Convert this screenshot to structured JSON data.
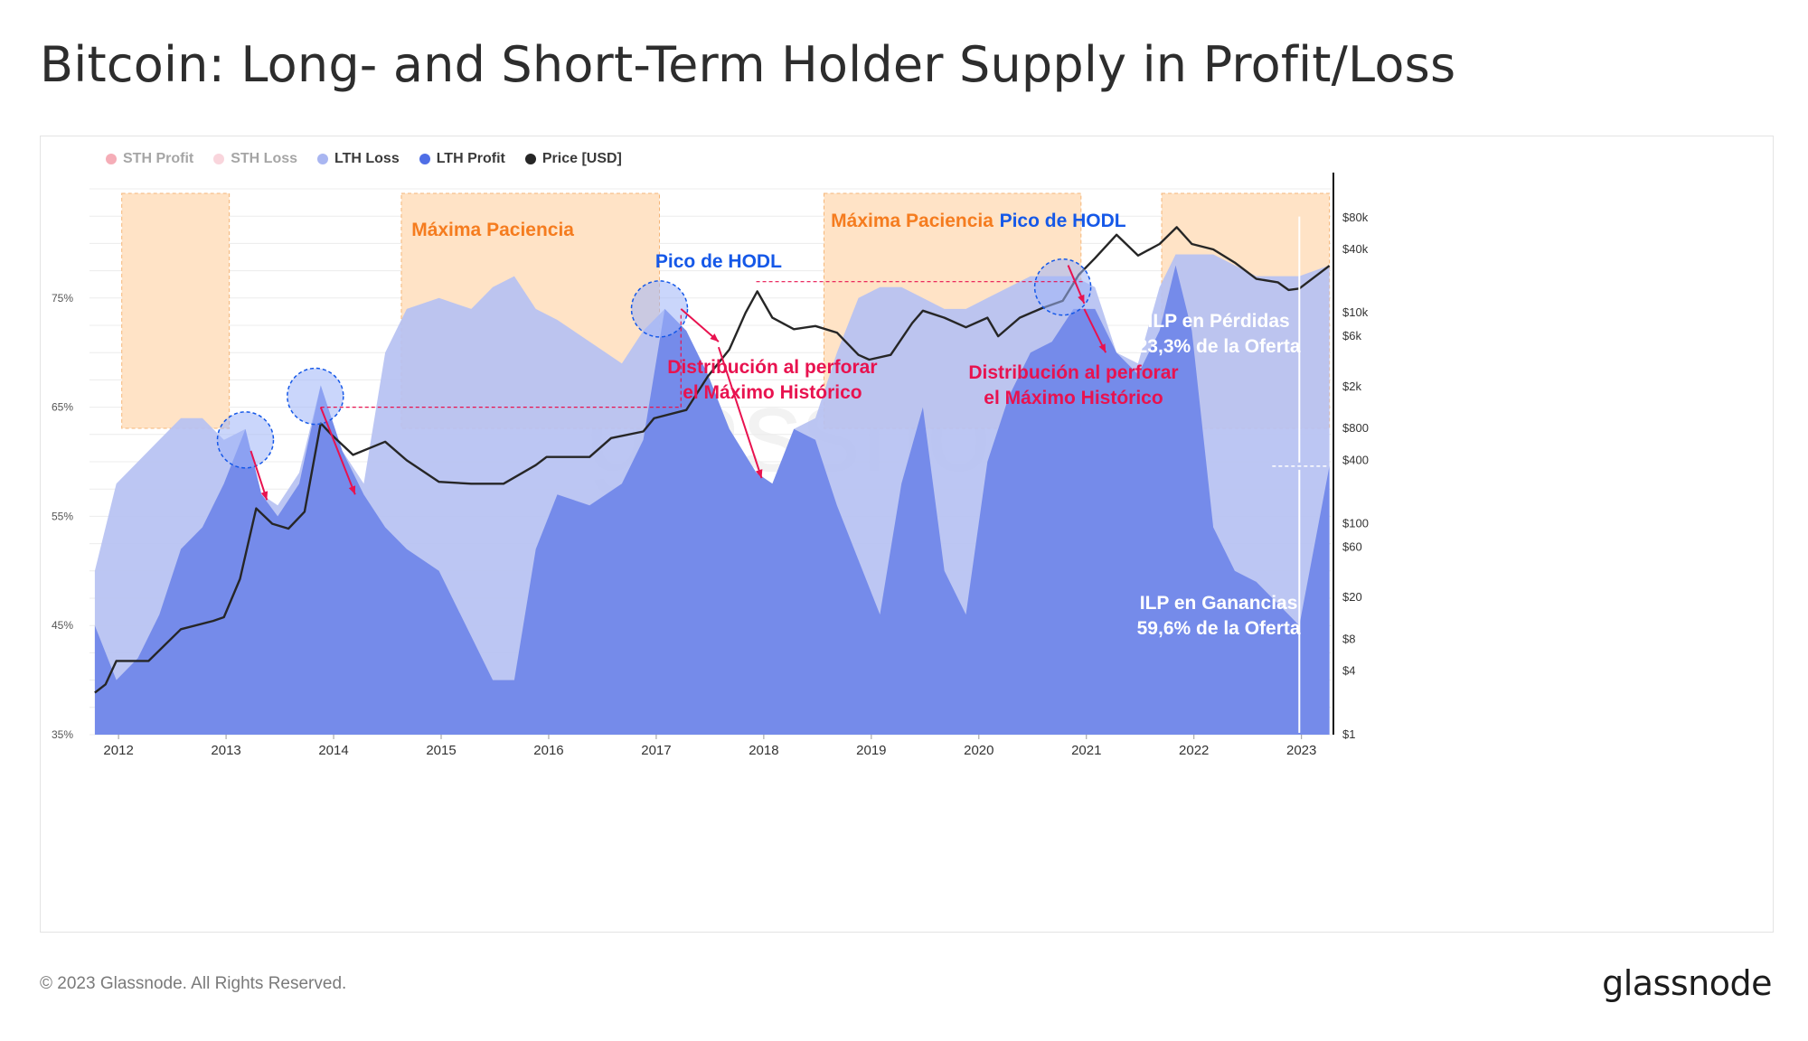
{
  "title": "Bitcoin: Long- and Short-Term Holder Supply in Profit/Loss",
  "footer": {
    "copyright": "© 2023 Glassnode. All Rights Reserved.",
    "logo": "glassnode"
  },
  "watermark": "glassnode",
  "colors": {
    "sth_profit": "#e84a5f",
    "sth_loss": "#f2a3b3",
    "lth_loss": "#b6c1f2",
    "lth_profit": "#7188e9",
    "price": "#262626",
    "band": "#ffe3c6",
    "annotation_orange": "#f57c1f",
    "annotation_blue": "#1558e8",
    "annotation_red": "#e8124f"
  },
  "legend": [
    {
      "label": "STH Profit",
      "color": "#e84a5f",
      "active": false
    },
    {
      "label": "STH Loss",
      "color": "#f2a3b3",
      "active": false
    },
    {
      "label": "LTH Loss",
      "color": "#a9b6f1",
      "active": true
    },
    {
      "label": "LTH Profit",
      "color": "#4f6ee6",
      "active": true
    },
    {
      "label": "Price [USD]",
      "color": "#262626",
      "active": true
    }
  ],
  "chart_data": {
    "type": "area",
    "title": "Bitcoin: Long- and Short-Term Holder Supply in Profit/Loss",
    "x_ticks": [
      "2012",
      "2013",
      "2014",
      "2015",
      "2016",
      "2017",
      "2018",
      "2019",
      "2020",
      "2021",
      "2022",
      "2023"
    ],
    "y_left": {
      "ticks": [
        "35%",
        "45%",
        "55%",
        "65%",
        "75%"
      ],
      "range": [
        35,
        85
      ],
      "unit": "% of supply"
    },
    "y_right": {
      "scale": "log",
      "ticks": [
        "$1",
        "$4",
        "$8",
        "$20",
        "$60",
        "$100",
        "$400",
        "$800",
        "$2k",
        "$6k",
        "$10k",
        "$40k",
        "$80k"
      ],
      "range": [
        1,
        150000
      ]
    },
    "series": [
      {
        "name": "LTH Loss",
        "x": [
          2011.8,
          2012.0,
          2012.2,
          2012.4,
          2012.6,
          2012.8,
          2013.0,
          2013.2,
          2013.35,
          2013.5,
          2013.7,
          2013.9,
          2014.1,
          2014.3,
          2014.5,
          2014.7,
          2015.0,
          2015.3,
          2015.5,
          2015.7,
          2015.9,
          2016.1,
          2016.4,
          2016.7,
          2016.9,
          2017.1,
          2017.3,
          2017.5,
          2017.7,
          2017.95,
          2018.1,
          2018.3,
          2018.5,
          2018.7,
          2018.9,
          2019.1,
          2019.3,
          2019.5,
          2019.7,
          2019.9,
          2020.1,
          2020.3,
          2020.5,
          2020.7,
          2020.9,
          2021.1,
          2021.3,
          2021.5,
          2021.7,
          2021.85,
          2022.0,
          2022.2,
          2022.4,
          2022.6,
          2022.8,
          2023.0,
          2023.28
        ],
        "values": [
          50,
          58,
          60,
          62,
          64,
          64,
          62,
          63,
          57,
          56,
          59,
          67,
          61,
          58,
          70,
          74,
          75,
          74,
          76,
          77,
          74,
          73,
          71,
          69,
          72,
          74,
          72,
          68,
          63,
          59,
          58,
          63,
          64,
          70,
          75,
          76,
          76,
          75,
          74,
          74,
          75,
          76,
          77,
          77,
          77,
          76,
          70,
          69,
          76,
          79,
          79,
          79,
          78,
          77,
          77,
          77,
          78
        ]
      },
      {
        "name": "LTH Profit",
        "x": [
          2011.8,
          2012.0,
          2012.2,
          2012.4,
          2012.6,
          2012.8,
          2013.0,
          2013.2,
          2013.35,
          2013.5,
          2013.7,
          2013.9,
          2014.1,
          2014.3,
          2014.5,
          2014.7,
          2015.0,
          2015.3,
          2015.5,
          2015.7,
          2015.9,
          2016.1,
          2016.4,
          2016.7,
          2016.9,
          2017.1,
          2017.3,
          2017.5,
          2017.7,
          2017.95,
          2018.1,
          2018.3,
          2018.5,
          2018.7,
          2018.9,
          2019.1,
          2019.3,
          2019.5,
          2019.7,
          2019.9,
          2020.1,
          2020.3,
          2020.5,
          2020.7,
          2020.9,
          2021.1,
          2021.3,
          2021.5,
          2021.7,
          2021.85,
          2022.0,
          2022.2,
          2022.4,
          2022.6,
          2022.8,
          2023.0,
          2023.28
        ],
        "values": [
          45,
          40,
          42,
          46,
          52,
          54,
          58,
          63,
          57,
          55,
          58,
          67,
          61,
          57,
          54,
          52,
          50,
          44,
          40,
          40,
          52,
          57,
          56,
          58,
          62,
          74,
          72,
          68,
          63,
          59,
          58,
          63,
          62,
          56,
          51,
          46,
          58,
          65,
          50,
          46,
          60,
          66,
          70,
          71,
          74,
          74,
          70,
          68,
          72,
          78,
          72,
          54,
          50,
          49,
          47,
          45,
          59.6
        ]
      },
      {
        "name": "Price [USD]",
        "x": [
          2011.8,
          2011.9,
          2012.0,
          2012.3,
          2012.6,
          2012.9,
          2013.0,
          2013.15,
          2013.3,
          2013.45,
          2013.6,
          2013.75,
          2013.9,
          2014.0,
          2014.2,
          2014.5,
          2014.7,
          2015.0,
          2015.3,
          2015.6,
          2015.9,
          2016.0,
          2016.4,
          2016.6,
          2016.9,
          2017.0,
          2017.3,
          2017.5,
          2017.7,
          2017.85,
          2017.96,
          2018.1,
          2018.3,
          2018.5,
          2018.7,
          2018.9,
          2019.0,
          2019.2,
          2019.4,
          2019.5,
          2019.7,
          2019.9,
          2020.1,
          2020.2,
          2020.4,
          2020.6,
          2020.8,
          2020.95,
          2021.1,
          2021.3,
          2021.5,
          2021.7,
          2021.86,
          2022.0,
          2022.2,
          2022.4,
          2022.6,
          2022.8,
          2022.9,
          2023.0,
          2023.28
        ],
        "values": [
          2.5,
          3,
          5,
          5,
          10,
          12,
          13,
          30,
          140,
          100,
          90,
          130,
          900,
          700,
          450,
          600,
          400,
          250,
          240,
          240,
          360,
          430,
          430,
          650,
          750,
          1000,
          1200,
          2500,
          4500,
          10000,
          16000,
          9000,
          7000,
          7500,
          6500,
          4000,
          3600,
          4000,
          8000,
          10500,
          9000,
          7300,
          9000,
          6000,
          9000,
          11000,
          13000,
          23000,
          33000,
          55000,
          35000,
          45000,
          65000,
          45000,
          40000,
          30000,
          21000,
          19500,
          16500,
          17000,
          28000
        ]
      }
    ],
    "annotations": [
      {
        "text": "Máxima Paciencia",
        "color": "orange",
        "x": 2015.5
      },
      {
        "text": "Máxima Paciencia",
        "color": "orange",
        "x": 2019.4
      },
      {
        "text": "Pico de HODL",
        "color": "blue",
        "x": 2017.6
      },
      {
        "text": "Pico de HODL",
        "color": "blue",
        "x": 2020.8
      },
      {
        "text": "Distribución al perforar",
        "text2": "el Máximo Histórico",
        "color": "red",
        "x": 2018.1
      },
      {
        "text": "Distribución al perforar",
        "text2": "el Máximo Histórico",
        "color": "red",
        "x": 2020.9
      },
      {
        "text": "ILP en Pérdidas",
        "text2": "23,3% de la Oferta",
        "color": "white",
        "x": 2022.25
      },
      {
        "text": "ILP en Ganancias",
        "text2": "59,6% de la Oferta",
        "color": "white",
        "x": 2022.25
      }
    ],
    "bands": [
      {
        "x": [
          2012.05,
          2013.05
        ]
      },
      {
        "x": [
          2014.65,
          2017.05
        ]
      },
      {
        "x": [
          2018.58,
          2020.97
        ]
      },
      {
        "x": [
          2021.72,
          2023.28
        ]
      }
    ],
    "grid": true,
    "legend_position": "top-left"
  }
}
